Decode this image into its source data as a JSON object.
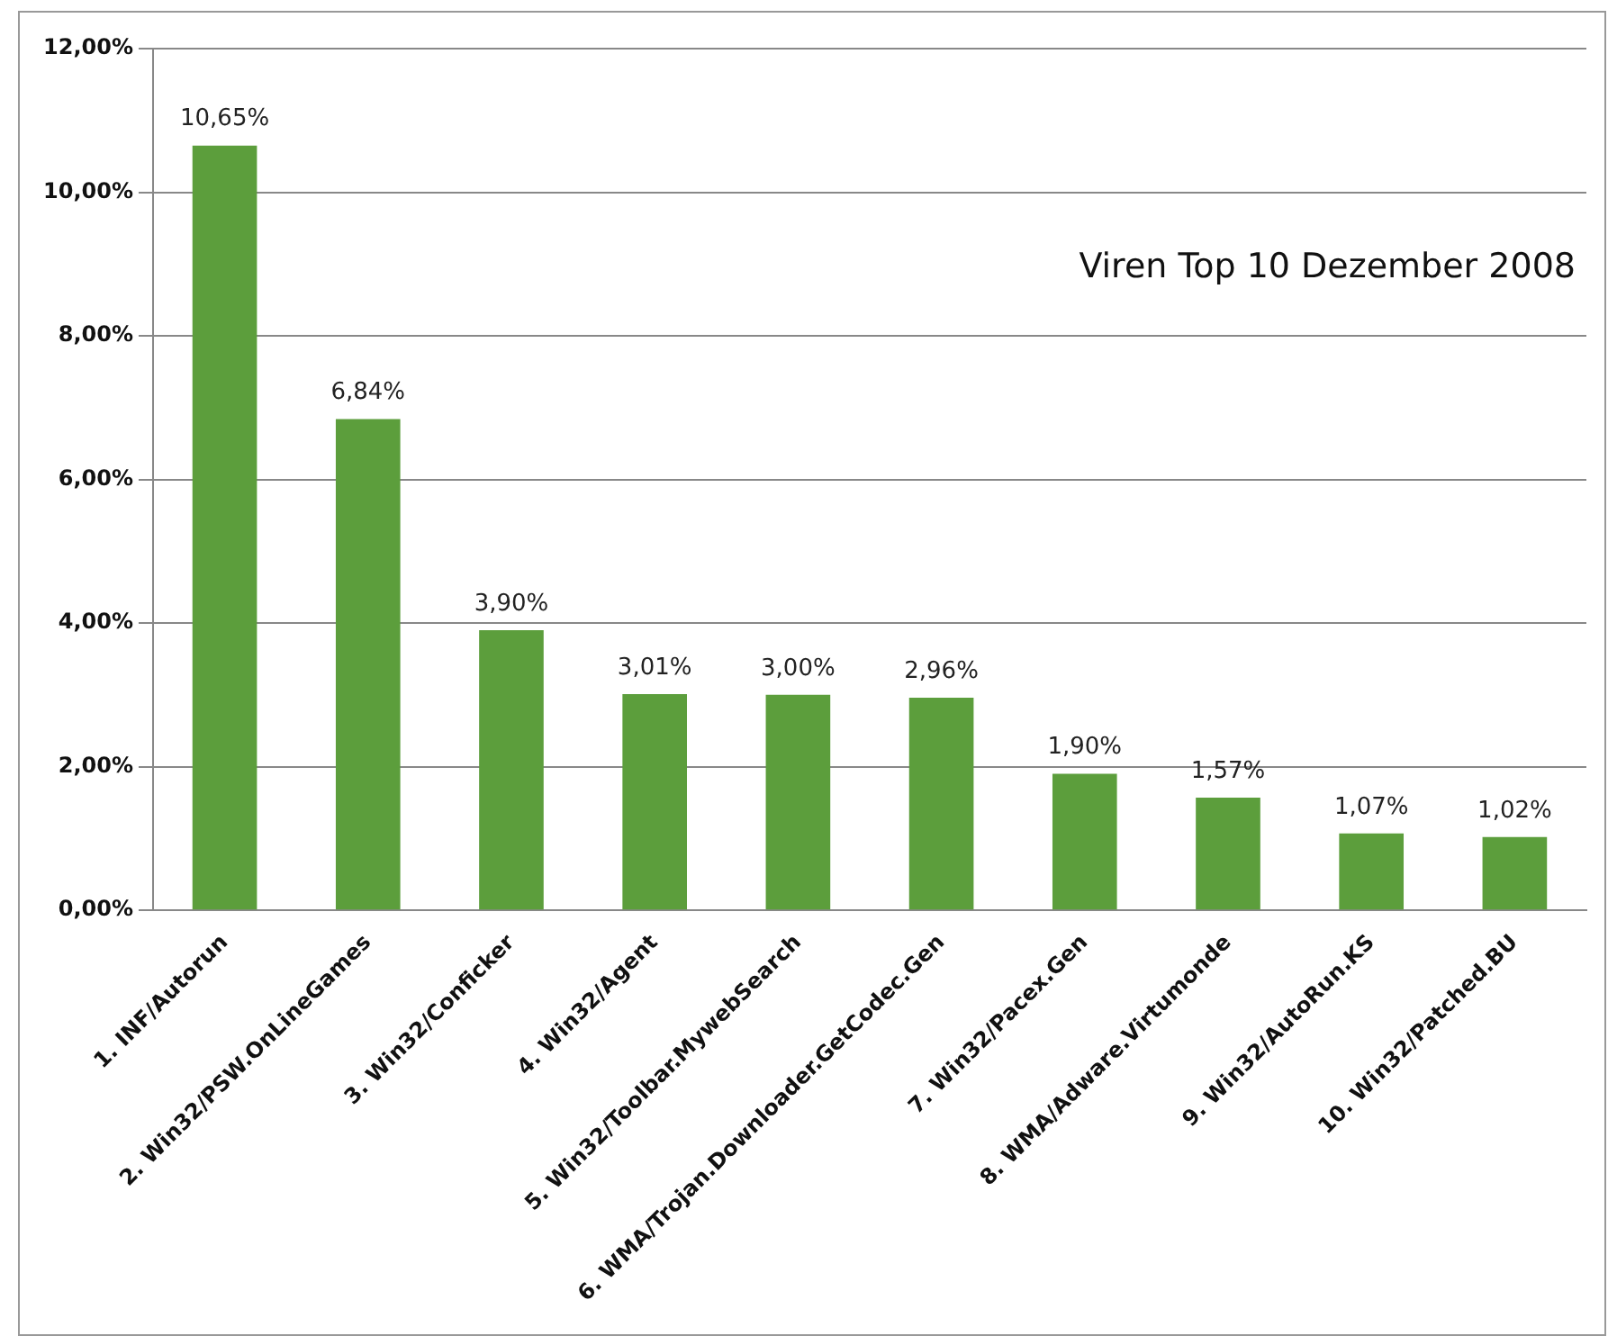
{
  "chart_data": {
    "type": "bar",
    "title": "Viren Top 10 Dezember 2008",
    "categories": [
      "1. INF/Autorun",
      "2. Win32/PSW.OnLineGames",
      "3. Win32/Conficker",
      "4. Win32/Agent",
      "5. Win32/Toolbar.MywebSearch",
      "6. WMA/Trojan.Downloader.GetCodec.Gen",
      "7. Win32/Pacex.Gen",
      "8. WMA/Adware.Virtumonde",
      "9. Win32/AutoRun.KS",
      "10. Win32/Patched.BU"
    ],
    "values": [
      10.65,
      6.84,
      3.9,
      3.01,
      3.0,
      2.96,
      1.9,
      1.57,
      1.07,
      1.02
    ],
    "value_labels": [
      "10,65%",
      "6,84%",
      "3,90%",
      "3,01%",
      "3,00%",
      "2,96%",
      "1,90%",
      "1,57%",
      "1,07%",
      "1,02%"
    ],
    "color": "#5c9e3c",
    "ylim": [
      0,
      12
    ],
    "yticks": [
      {
        "value": 0,
        "label": "0,00%"
      },
      {
        "value": 2,
        "label": "2,00%"
      },
      {
        "value": 4,
        "label": "4,00%"
      },
      {
        "value": 6,
        "label": "6,00%"
      },
      {
        "value": 8,
        "label": "8,00%"
      },
      {
        "value": 10,
        "label": "10,00%"
      },
      {
        "value": 12,
        "label": "12,00%"
      }
    ],
    "grid": "y"
  }
}
